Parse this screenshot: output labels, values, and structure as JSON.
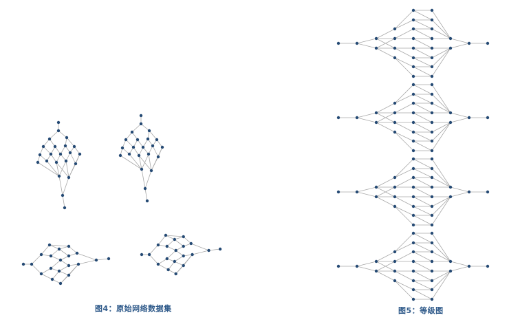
{
  "figure4": {
    "caption": "图4：原始网络数据集"
  },
  "figure5": {
    "caption": "图5：等级图"
  },
  "colors": {
    "node": "#254a74",
    "edge": "#a8a8a8",
    "caption": "#2f5a8a"
  }
}
